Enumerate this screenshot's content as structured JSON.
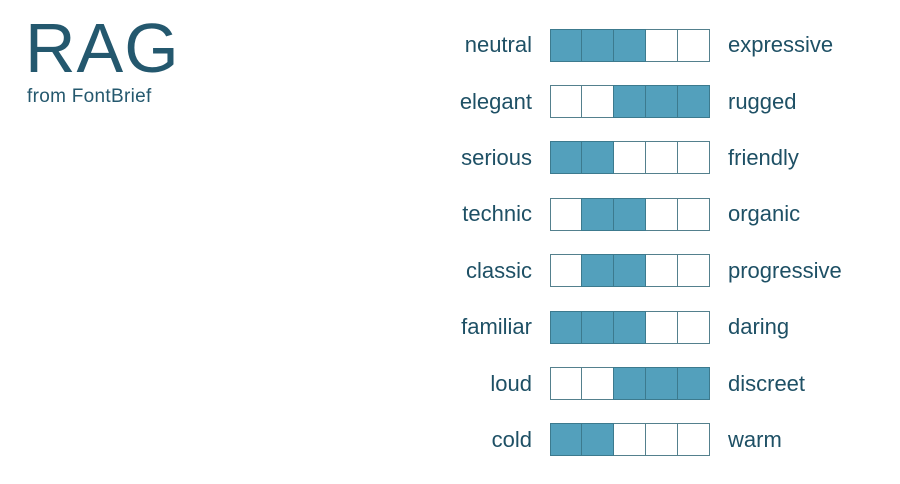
{
  "logo": {
    "title": "RAG",
    "subtitle": "from FontBrief"
  },
  "colors": {
    "text": "#1e5065",
    "logo": "#24586e",
    "box_fill": "#53a0bc",
    "box_border": "#54808d",
    "box_border_filled": "#3c7a8e",
    "background": "#ffffff"
  },
  "scales": {
    "cells_per_scale": 5,
    "items": [
      {
        "left": "neutral",
        "right": "expressive",
        "cells": [
          1,
          1,
          1,
          0,
          0
        ]
      },
      {
        "left": "elegant",
        "right": "rugged",
        "cells": [
          0,
          0,
          1,
          1,
          1
        ]
      },
      {
        "left": "serious",
        "right": "friendly",
        "cells": [
          1,
          1,
          0,
          0,
          0
        ]
      },
      {
        "left": "technic",
        "right": "organic",
        "cells": [
          0,
          1,
          1,
          0,
          0
        ]
      },
      {
        "left": "classic",
        "right": "progressive",
        "cells": [
          0,
          1,
          1,
          0,
          0
        ]
      },
      {
        "left": "familiar",
        "right": "daring",
        "cells": [
          1,
          1,
          1,
          0,
          0
        ]
      },
      {
        "left": "loud",
        "right": "discreet",
        "cells": [
          0,
          0,
          1,
          1,
          1
        ]
      },
      {
        "left": "cold",
        "right": "warm",
        "cells": [
          1,
          1,
          0,
          0,
          0
        ]
      }
    ]
  }
}
